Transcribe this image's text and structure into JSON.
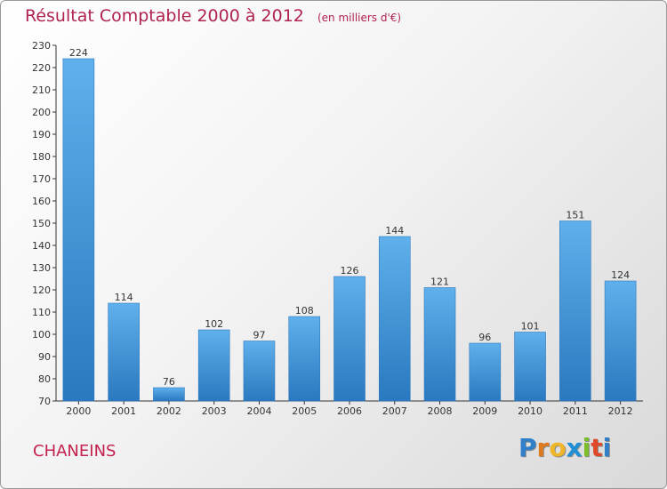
{
  "chart_data": {
    "type": "bar",
    "title": "Résultat Comptable 2000 à 2012",
    "unit_label": "(en milliers d'€)",
    "xlabel": "",
    "ylabel": "",
    "categories": [
      "2000",
      "2001",
      "2002",
      "2003",
      "2004",
      "2005",
      "2006",
      "2007",
      "2008",
      "2009",
      "2010",
      "2011",
      "2012"
    ],
    "values": [
      224,
      114,
      76,
      102,
      97,
      108,
      126,
      144,
      121,
      96,
      101,
      151,
      124
    ],
    "value_labels": [
      "224",
      "114",
      "76",
      "102",
      "97",
      "108",
      "126",
      "144",
      "121",
      "96",
      "101",
      "151",
      "124"
    ],
    "ylim": [
      70,
      230
    ],
    "yticks": [
      70,
      80,
      90,
      100,
      110,
      120,
      130,
      140,
      150,
      160,
      170,
      180,
      190,
      200,
      210,
      220,
      230
    ],
    "grid": false,
    "legend": "none",
    "bar_color": "#3b8fd6"
  },
  "footer": {
    "commune": "CHANEINS",
    "logo_letters": [
      "P",
      "r",
      "o",
      "x",
      "i",
      "t",
      "i"
    ],
    "logo_colors": [
      "#2f7fc9",
      "#e07a1f",
      "#f0b62a",
      "#1f8fd6",
      "#7bbd2b",
      "#e04a2a",
      "#2f7fc9"
    ]
  }
}
